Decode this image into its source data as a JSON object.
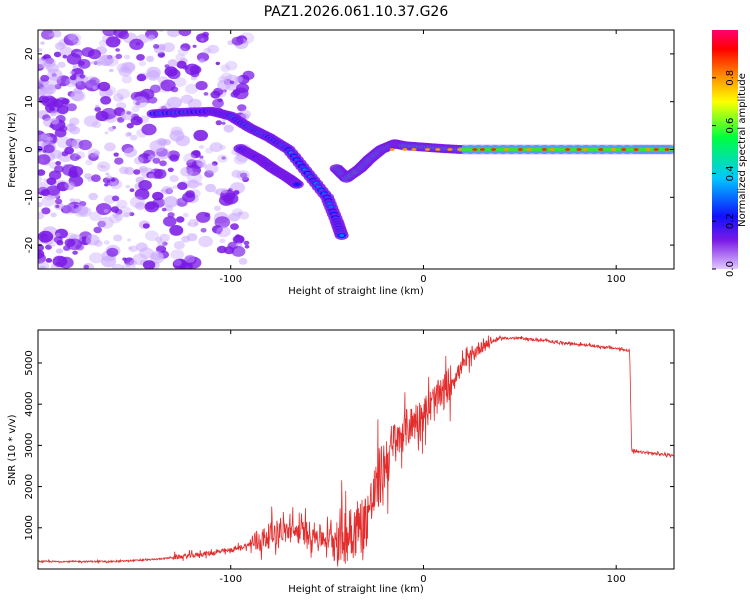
{
  "title": "PAZ1.2026.061.10.37.G26",
  "chart_data": [
    {
      "type": "heatmap",
      "name": "spectrogram",
      "xlabel": "Height of straight line (km)",
      "ylabel": "Frequency (Hz)",
      "xlim": [
        -200,
        130
      ],
      "ylim": [
        -25,
        25
      ],
      "xticks": [
        -100,
        0,
        100
      ],
      "yticks": [
        20,
        10,
        0,
        -10,
        -20
      ],
      "colorbar": {
        "label": "Normalized spectral amplitude",
        "range": [
          0,
          1
        ],
        "ticks": [
          "0.0",
          "0.2",
          "0.4",
          "0.6",
          "0.8"
        ],
        "tick_values": [
          0.0,
          0.2,
          0.4,
          0.6,
          0.8
        ],
        "colormap": [
          "#e2c8ff",
          "#7a1ae6",
          "#1010ff",
          "#00c8ff",
          "#00ff40",
          "#ffff00",
          "#ff7f00",
          "#ff0000",
          "#ff0070"
        ]
      },
      "features": [
        {
          "name": "upper-branch",
          "points": [
            [
              -140,
              7.5
            ],
            [
              -125,
              7.8
            ],
            [
              -110,
              8
            ],
            [
              -100,
              7
            ],
            [
              -90,
              4.5
            ],
            [
              -80,
              2.5
            ],
            [
              -70,
              0
            ],
            [
              -60,
              -5
            ],
            [
              -50,
              -10
            ],
            [
              -45,
              -15
            ],
            [
              -42,
              -18.5
            ]
          ],
          "amplitude": 0.3
        },
        {
          "name": "lower-branch",
          "points": [
            [
              -95,
              0.2
            ],
            [
              -85,
              -2
            ],
            [
              -78,
              -4
            ],
            [
              -70,
              -6
            ],
            [
              -65,
              -7.5
            ]
          ],
          "amplitude": 0.2
        },
        {
          "name": "recovery",
          "points": [
            [
              -45,
              -4
            ],
            [
              -40,
              -6
            ],
            [
              -33,
              -4
            ],
            [
              -28,
              -2
            ],
            [
              -22,
              0
            ],
            [
              -15,
              1.2
            ],
            [
              -10,
              0.8
            ],
            [
              0,
              0.5
            ],
            [
              10,
              0.2
            ],
            [
              20,
              0
            ]
          ],
          "amplitude": 0.55
        },
        {
          "name": "carrier",
          "points": [
            [
              20,
              0
            ],
            [
              50,
              0
            ],
            [
              80,
              0
            ],
            [
              110,
              0
            ],
            [
              130,
              0
            ]
          ],
          "amplitude": 0.5
        }
      ]
    },
    {
      "type": "line",
      "name": "snr",
      "xlabel": "Height of straight line (km)",
      "ylabel": "SNR (10 * v/v)",
      "xlim": [
        -200,
        130
      ],
      "ylim": [
        0,
        5800
      ],
      "xticks": [
        -100,
        0,
        100
      ],
      "yticks": [
        1000,
        2000,
        3000,
        4000,
        5000
      ],
      "color": "#e32d2d",
      "envelope": [
        [
          -200,
          180
        ],
        [
          -160,
          180
        ],
        [
          -140,
          230
        ],
        [
          -120,
          320
        ],
        [
          -100,
          450
        ],
        [
          -85,
          650
        ],
        [
          -75,
          900
        ],
        [
          -60,
          850
        ],
        [
          -50,
          700
        ],
        [
          -40,
          750
        ],
        [
          -30,
          1100
        ],
        [
          -20,
          2500
        ],
        [
          -10,
          3300
        ],
        [
          0,
          3700
        ],
        [
          10,
          4200
        ],
        [
          20,
          4900
        ],
        [
          30,
          5400
        ],
        [
          40,
          5600
        ],
        [
          50,
          5600
        ],
        [
          60,
          5550
        ],
        [
          70,
          5500
        ],
        [
          80,
          5450
        ],
        [
          90,
          5400
        ],
        [
          100,
          5350
        ],
        [
          107,
          5300
        ],
        [
          108,
          2850
        ],
        [
          115,
          2820
        ],
        [
          130,
          2750
        ]
      ]
    }
  ]
}
